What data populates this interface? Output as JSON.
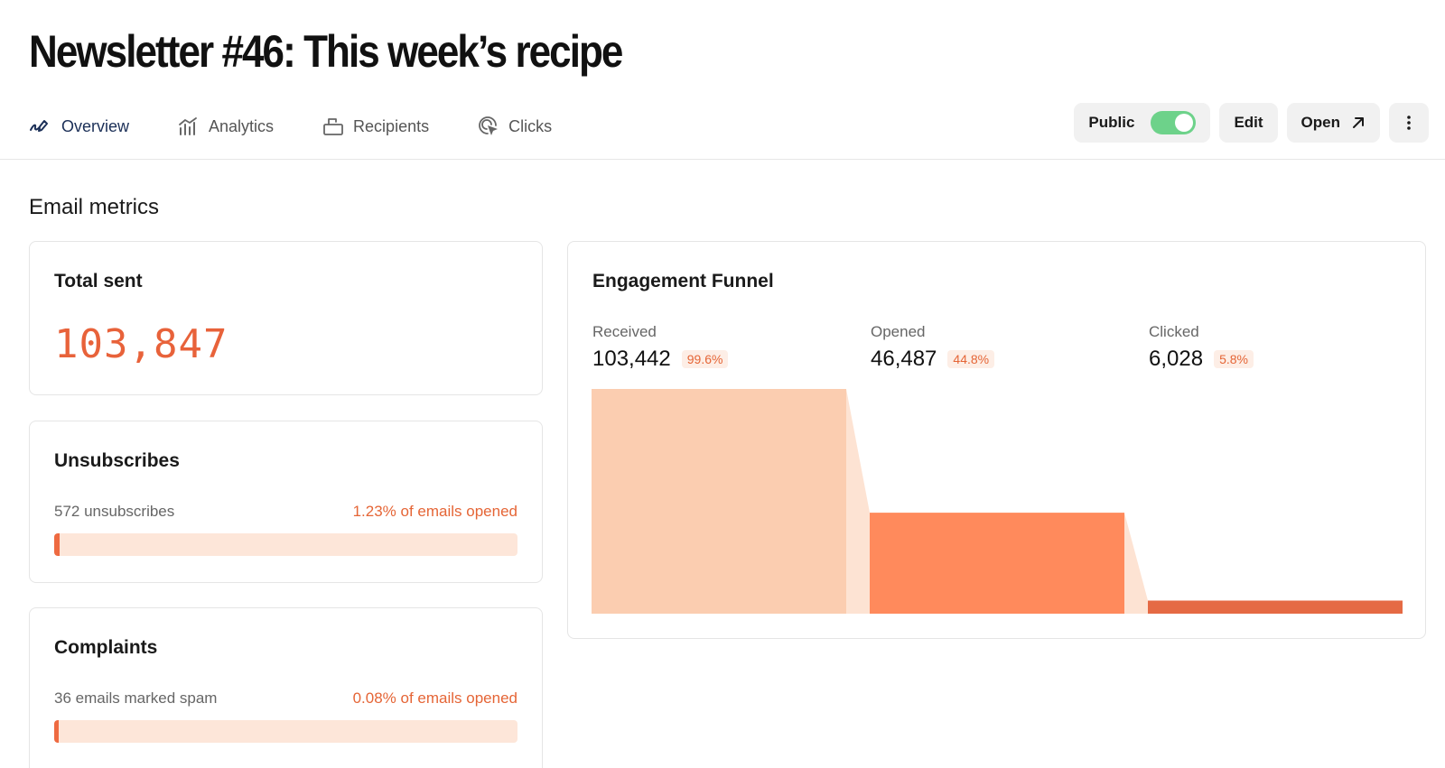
{
  "page": {
    "title": "Newsletter #46: This week’s recipe"
  },
  "tabs": [
    {
      "label": "Overview",
      "icon": "overview-icon",
      "active": true
    },
    {
      "label": "Analytics",
      "icon": "analytics-icon"
    },
    {
      "label": "Recipients",
      "icon": "recipients-icon"
    },
    {
      "label": "Clicks",
      "icon": "clicks-icon"
    }
  ],
  "actions": {
    "public_label": "Public",
    "public_enabled": true,
    "edit_label": "Edit",
    "open_label": "Open",
    "more_icon": "more-vertical-icon"
  },
  "metrics": {
    "section_title": "Email metrics",
    "total_sent": {
      "title": "Total sent",
      "value": "103,847"
    },
    "unsubscribes": {
      "title": "Unsubscribes",
      "count_text": "572 unsubscribes",
      "rate_text": "1.23% of emails opened",
      "rate_fraction": 0.0123
    },
    "complaints": {
      "title": "Complaints",
      "count_text": "36 emails marked spam",
      "rate_text": "0.08% of emails opened",
      "rate_fraction": 0.0008
    }
  },
  "funnel": {
    "title": "Engagement Funnel",
    "stages": [
      {
        "label": "Received",
        "value": "103,442",
        "pct": "99.6%"
      },
      {
        "label": "Opened",
        "value": "46,487",
        "pct": "44.8%"
      },
      {
        "label": "Clicked",
        "value": "6,028",
        "pct": "5.8%"
      }
    ]
  },
  "colors": {
    "accent": "#e8623a",
    "toggle_on": "#6dd28a",
    "funnel_received": "#fbcdb0",
    "funnel_opened": "#ff8a5c",
    "funnel_clicked": "#e56a44",
    "funnel_connector": "#fde3d3"
  },
  "chart_data": {
    "type": "bar",
    "title": "Engagement Funnel",
    "categories": [
      "Received",
      "Opened",
      "Clicked"
    ],
    "values": [
      103442,
      46487,
      6028
    ],
    "percentages": [
      99.6,
      44.8,
      5.8
    ],
    "xlabel": "",
    "ylabel": "",
    "ylim": [
      0,
      103442
    ],
    "grid": false,
    "legend": "none"
  }
}
